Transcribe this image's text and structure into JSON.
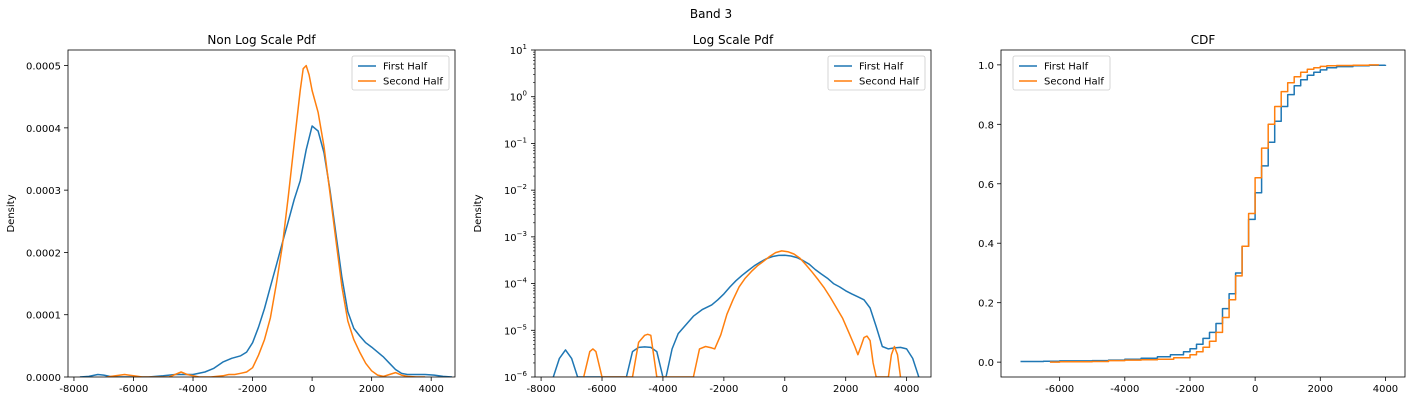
{
  "figure": {
    "suptitle": "Band 3",
    "colors": {
      "first": "#1f77b4",
      "second": "#ff7f0e"
    }
  },
  "chart_data": [
    {
      "type": "line",
      "title": "Non Log Scale Pdf",
      "xlabel": "",
      "ylabel": "Density",
      "xlim": [
        -8200,
        4800
      ],
      "ylim": [
        0,
        0.000525
      ],
      "xticks": [
        -8000,
        -6000,
        -4000,
        -2000,
        0,
        2000,
        4000
      ],
      "yticks": [
        0,
        0.0001,
        0.0002,
        0.0003,
        0.0004,
        0.0005
      ],
      "ytick_labels": [
        "0.0000",
        "0.0001",
        "0.0002",
        "0.0003",
        "0.0004",
        "0.0005"
      ],
      "legend": {
        "position": "upper right",
        "entries": [
          "First Half",
          "Second Half"
        ]
      },
      "series": [
        {
          "name": "First Half",
          "x": [
            -7800,
            -7500,
            -7200,
            -7000,
            -6800,
            -6500,
            -6000,
            -5500,
            -5000,
            -4600,
            -4300,
            -4000,
            -3600,
            -3300,
            -3000,
            -2700,
            -2400,
            -2200,
            -2000,
            -1800,
            -1600,
            -1400,
            -1200,
            -1000,
            -800,
            -600,
            -400,
            -200,
            0,
            200,
            400,
            600,
            800,
            1000,
            1200,
            1400,
            1600,
            1800,
            2000,
            2200,
            2400,
            2600,
            2800,
            3000,
            3200,
            3500,
            3800,
            4100,
            4400,
            4700
          ],
          "y": [
            0,
            1e-06,
            4e-06,
            3e-06,
            1e-06,
            0,
            0,
            0,
            2e-06,
            4e-06,
            4e-06,
            4e-06,
            8e-06,
            1.4e-05,
            2.4e-05,
            3e-05,
            3.4e-05,
            4e-05,
            5.5e-05,
            8e-05,
            0.00011,
            0.000145,
            0.00018,
            0.000215,
            0.00025,
            0.000285,
            0.000315,
            0.000365,
            0.000403,
            0.000395,
            0.00036,
            0.0003,
            0.00023,
            0.00016,
            0.000105,
            7.8e-05,
            6.6e-05,
            5.5e-05,
            4.8e-05,
            4e-05,
            3.2e-05,
            2.2e-05,
            1.2e-05,
            6e-06,
            4e-06,
            4e-06,
            4e-06,
            3e-06,
            1e-06,
            0
          ]
        },
        {
          "name": "Second Half",
          "x": [
            -6900,
            -6600,
            -6300,
            -6000,
            -5700,
            -5200,
            -4800,
            -4600,
            -4400,
            -4200,
            -3800,
            -3400,
            -3000,
            -2800,
            -2600,
            -2400,
            -2200,
            -2000,
            -1800,
            -1600,
            -1400,
            -1200,
            -1000,
            -800,
            -600,
            -400,
            -300,
            -200,
            -100,
            0,
            200,
            400,
            600,
            800,
            1000,
            1200,
            1400,
            1600,
            1800,
            2000,
            2200,
            2400,
            2600,
            2800,
            3000,
            3200,
            3500,
            3800
          ],
          "y": [
            0,
            2e-06,
            4e-06,
            2e-06,
            0,
            0,
            0,
            4e-06,
            8e-06,
            4e-06,
            0,
            0,
            2e-06,
            4e-06,
            4e-06,
            6e-06,
            8e-06,
            1.5e-05,
            3.5e-05,
            6e-05,
            9.5e-05,
            0.00015,
            0.00021,
            0.00029,
            0.000375,
            0.00046,
            0.000495,
            0.0005,
            0.000485,
            0.00046,
            0.000425,
            0.00037,
            0.000295,
            0.00022,
            0.000145,
            9e-05,
            6e-05,
            4e-05,
            2.2e-05,
            1e-05,
            3e-06,
            1e-06,
            4e-06,
            7e-06,
            3e-06,
            1e-06,
            0,
            0
          ]
        }
      ]
    },
    {
      "type": "line",
      "title": "Log Scale Pdf",
      "xlabel": "",
      "ylabel": "Density",
      "yscale": "log",
      "xlim": [
        -8200,
        4800
      ],
      "ylim": [
        1e-06,
        10
      ],
      "xticks": [
        -8000,
        -6000,
        -4000,
        -2000,
        0,
        2000,
        4000
      ],
      "ytick_exponents": [
        -6,
        -5,
        -4,
        -3,
        -2,
        -1,
        0,
        1
      ],
      "legend": {
        "position": "upper right",
        "entries": [
          "First Half",
          "Second Half"
        ]
      },
      "series": [
        {
          "name": "First Half",
          "x": [
            -7600,
            -7400,
            -7200,
            -7000,
            -6800,
            -5200,
            -5000,
            -4800,
            -4600,
            -4400,
            -4200,
            -4000,
            -3900,
            -3700,
            -3500,
            -3300,
            -3000,
            -2700,
            -2400,
            -2200,
            -2000,
            -1800,
            -1600,
            -1400,
            -1200,
            -1000,
            -800,
            -600,
            -400,
            -200,
            0,
            200,
            400,
            600,
            800,
            1000,
            1200,
            1400,
            1600,
            1800,
            2000,
            2200,
            2400,
            2600,
            2800,
            3000,
            3200,
            3400,
            3600,
            3800,
            4000,
            4200,
            4400
          ],
          "y": [
            1e-06,
            2.5e-06,
            3.8e-06,
            2.5e-06,
            1e-06,
            1e-06,
            3.5e-06,
            4.3e-06,
            4.4e-06,
            4.3e-06,
            3.5e-06,
            1e-06,
            1e-06,
            4e-06,
            8.5e-06,
            1.2e-05,
            2e-05,
            2.8e-05,
            3.5e-05,
            4.5e-05,
            6e-05,
            8.5e-05,
            0.000115,
            0.00015,
            0.00019,
            0.00024,
            0.00029,
            0.00034,
            0.00038,
            0.0004,
            0.000403,
            0.00039,
            0.00036,
            0.00031,
            0.00026,
            0.0002,
            0.00016,
            0.00013,
            0.0001,
            8.5e-05,
            7e-05,
            6e-05,
            5.2e-05,
            4.5e-05,
            3e-05,
            1.2e-05,
            4.5e-06,
            4e-06,
            4.2e-06,
            4.3e-06,
            4e-06,
            2.5e-06,
            1e-06
          ]
        },
        {
          "name": "Second Half",
          "x": [
            -6600,
            -6400,
            -6300,
            -6200,
            -6000,
            -5000,
            -4800,
            -4600,
            -4500,
            -4400,
            -4200,
            -3000,
            -2800,
            -2600,
            -2400,
            -2300,
            -2100,
            -1900,
            -1700,
            -1500,
            -1300,
            -1100,
            -900,
            -700,
            -500,
            -300,
            -100,
            100,
            300,
            500,
            700,
            900,
            1100,
            1300,
            1500,
            1700,
            1900,
            2100,
            2300,
            2400,
            2500,
            2600,
            2700,
            2800,
            2900,
            3000,
            3400,
            3500,
            3600,
            3700,
            3800
          ],
          "y": [
            1e-06,
            3.5e-06,
            4e-06,
            3.5e-06,
            1e-06,
            1e-06,
            5.5e-06,
            7.8e-06,
            8.2e-06,
            7.8e-06,
            1e-06,
            1e-06,
            4e-06,
            4.5e-06,
            4.2e-06,
            4e-06,
            8e-06,
            2.2e-05,
            4.5e-05,
            8.5e-05,
            0.00013,
            0.00018,
            0.00024,
            0.0003,
            0.00038,
            0.00046,
            0.0005,
            0.00048,
            0.00043,
            0.00035,
            0.00025,
            0.000175,
            0.00012,
            8e-05,
            5e-05,
            3e-05,
            1.8e-05,
            9e-06,
            4.5e-06,
            3e-06,
            4.5e-06,
            7e-06,
            7.5e-06,
            6e-06,
            2e-06,
            1e-06,
            1e-06,
            3e-06,
            4.5e-06,
            3e-06,
            1e-06
          ]
        }
      ]
    },
    {
      "type": "line",
      "step": true,
      "title": "CDF",
      "xlabel": "",
      "ylabel": "",
      "xlim": [
        -7800,
        4600
      ],
      "ylim": [
        -0.05,
        1.05
      ],
      "xticks": [
        -6000,
        -4000,
        -2000,
        0,
        2000,
        4000
      ],
      "yticks": [
        0,
        0.2,
        0.4,
        0.6,
        0.8,
        1.0
      ],
      "ytick_labels": [
        "0.0",
        "0.2",
        "0.4",
        "0.6",
        "0.8",
        "1.0"
      ],
      "legend": {
        "position": "upper left",
        "entries": [
          "First Half",
          "Second Half"
        ]
      },
      "series": [
        {
          "name": "First Half",
          "x": [
            -7200,
            -6500,
            -6000,
            -5000,
            -4500,
            -4000,
            -3500,
            -3000,
            -2600,
            -2200,
            -2000,
            -1800,
            -1600,
            -1400,
            -1200,
            -1000,
            -800,
            -600,
            -400,
            -200,
            0,
            200,
            400,
            600,
            800,
            1000,
            1200,
            1400,
            1600,
            1800,
            2000,
            2200,
            2500,
            3000,
            3500,
            4000
          ],
          "y": [
            0.002,
            0.003,
            0.004,
            0.005,
            0.007,
            0.01,
            0.013,
            0.018,
            0.025,
            0.035,
            0.045,
            0.06,
            0.08,
            0.1,
            0.13,
            0.18,
            0.23,
            0.3,
            0.39,
            0.48,
            0.57,
            0.66,
            0.74,
            0.81,
            0.86,
            0.9,
            0.93,
            0.95,
            0.965,
            0.975,
            0.983,
            0.99,
            0.994,
            0.997,
            0.999,
            1.0
          ]
        },
        {
          "name": "Second Half",
          "x": [
            -6300,
            -6000,
            -5000,
            -4500,
            -4000,
            -3500,
            -3000,
            -2500,
            -2000,
            -1800,
            -1600,
            -1400,
            -1200,
            -1000,
            -800,
            -600,
            -400,
            -200,
            0,
            200,
            400,
            600,
            800,
            1000,
            1200,
            1400,
            1600,
            1800,
            2000,
            2200,
            2500,
            3000,
            3500,
            3800
          ],
          "y": [
            0.0,
            0.001,
            0.002,
            0.005,
            0.007,
            0.008,
            0.01,
            0.015,
            0.025,
            0.035,
            0.05,
            0.07,
            0.1,
            0.15,
            0.21,
            0.29,
            0.39,
            0.5,
            0.62,
            0.72,
            0.8,
            0.86,
            0.91,
            0.94,
            0.96,
            0.975,
            0.985,
            0.99,
            0.995,
            0.997,
            0.998,
            0.999,
            1.0,
            1.0
          ]
        }
      ]
    }
  ]
}
